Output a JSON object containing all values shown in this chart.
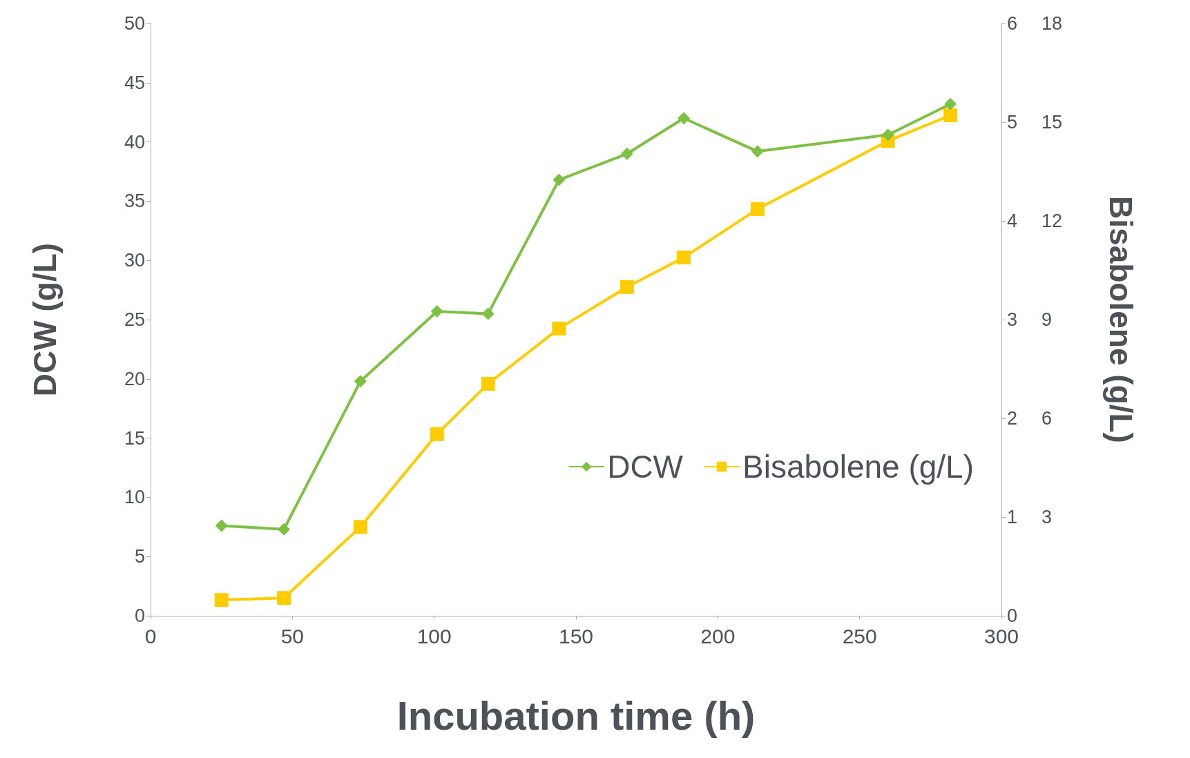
{
  "chart_data": {
    "type": "line",
    "xlabel": "Incubation time (h)",
    "ylabel": "DCW (g/L)",
    "y2label": "Bisabolene (g/L)",
    "xlim": [
      0,
      300
    ],
    "xticks": [
      0,
      50,
      100,
      150,
      200,
      250,
      300
    ],
    "ylim": [
      0,
      50
    ],
    "yticks": [
      0,
      5,
      10,
      15,
      20,
      25,
      30,
      35,
      40,
      45,
      50
    ],
    "y2lim": [
      0,
      6
    ],
    "y2ticks": [
      0,
      1,
      2,
      3,
      4,
      5,
      6
    ],
    "y3lim": [
      0,
      18
    ],
    "y3ticks": [
      3,
      6,
      9,
      12,
      15,
      18
    ],
    "grid": false,
    "legend": "right",
    "series": [
      {
        "name": "DCW",
        "color": "#7dc142",
        "marker": "diamond",
        "x": [
          25,
          47,
          74,
          101,
          119,
          144,
          168,
          188,
          214,
          260,
          282
        ],
        "values": [
          7.6,
          7.3,
          19.8,
          25.7,
          25.5,
          36.8,
          39.0,
          42.0,
          39.2,
          40.6,
          43.2
        ]
      },
      {
        "name": "Bisabolene (g/L)",
        "color": "#ffcc00",
        "marker": "square",
        "axis": "y2",
        "x": [
          25,
          47,
          74,
          101,
          119,
          144,
          168,
          188,
          214,
          260,
          282
        ],
        "values": [
          0.16,
          0.18,
          0.9,
          1.84,
          2.35,
          2.91,
          3.33,
          3.63,
          4.12,
          4.81,
          5.07
        ]
      }
    ]
  }
}
